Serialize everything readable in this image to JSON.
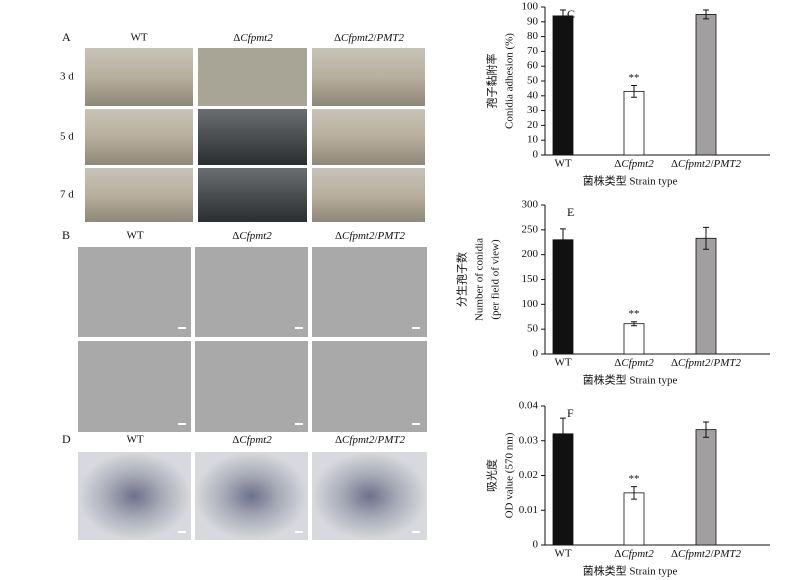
{
  "panels": [
    {
      "label": "A",
      "columns": [
        "WT",
        "ΔCfpmt2",
        "ΔCfpmt2/PMT2"
      ],
      "rows": [
        "3 d",
        "5 d",
        "7 d"
      ]
    },
    {
      "label": "B",
      "columns": [
        "WT",
        "ΔCfpmt2",
        "ΔCfpmt2/PMT2"
      ]
    },
    {
      "label": "D",
      "columns": [
        "WT",
        "ΔCfpmt2",
        "ΔCfpmt2/PMT2"
      ]
    }
  ],
  "chart_data": [
    {
      "type": "bar",
      "panel": "C",
      "categories": [
        "WT",
        "ΔCfpmt2",
        "ΔCfpmt2/PMT2"
      ],
      "values": [
        94,
        43,
        95
      ],
      "errors": [
        4,
        4,
        3
      ],
      "significance": [
        null,
        "**",
        null
      ],
      "colors": [
        "#111111",
        "#ffffff",
        "#a29fa1"
      ],
      "ylabel": [
        "孢子黏附率",
        "Conidia adhesion (%)"
      ],
      "xlabel": "菌株类型 Strain type",
      "ylim": [
        0,
        100
      ],
      "yticks": [
        0,
        10,
        20,
        30,
        40,
        50,
        60,
        70,
        80,
        90,
        100
      ]
    },
    {
      "type": "bar",
      "panel": "E",
      "categories": [
        "WT",
        "ΔCfpmt2",
        "ΔCfpmt2/PMT2"
      ],
      "values": [
        230,
        61,
        233
      ],
      "errors": [
        22,
        4,
        22
      ],
      "significance": [
        null,
        "**",
        null
      ],
      "colors": [
        "#111111",
        "#ffffff",
        "#a29fa1"
      ],
      "ylabel": [
        "分生孢子数",
        "Number of conidia",
        "(per field of view)"
      ],
      "xlabel": "菌株类型 Strain type",
      "ylim": [
        0,
        300
      ],
      "yticks": [
        0,
        50,
        100,
        150,
        200,
        250,
        300
      ]
    },
    {
      "type": "bar",
      "panel": "F",
      "categories": [
        "WT",
        "ΔCfpmt2",
        "ΔCfpmt2/PMT2"
      ],
      "values": [
        0.032,
        0.015,
        0.0332
      ],
      "errors": [
        0.0045,
        0.0018,
        0.0022
      ],
      "significance": [
        null,
        "**",
        null
      ],
      "colors": [
        "#111111",
        "#ffffff",
        "#a29fa1"
      ],
      "ylabel": [
        "吸光度",
        "OD value (570 nm)"
      ],
      "xlabel": "菌株类型 Strain type",
      "ylim": [
        0,
        0.04
      ],
      "yticks": [
        0,
        0.01,
        0.02,
        0.03,
        0.04
      ]
    }
  ]
}
